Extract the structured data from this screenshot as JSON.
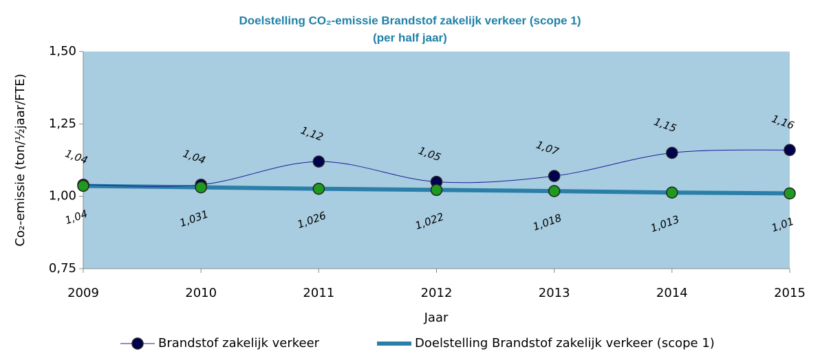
{
  "chart_data": {
    "type": "line",
    "title": "Doelstelling CO₂-emissie Brandstof zakelijk verkeer (scope 1)",
    "subtitle": "(per half jaar)",
    "x_label": "Jaar",
    "y_label": "Co₂-emissie (ton/½jaar/FTE)",
    "x": [
      2009,
      2010,
      2011,
      2012,
      2013,
      2014,
      2015
    ],
    "xlim": [
      2009,
      2015
    ],
    "xticks": [
      2009,
      2010,
      2011,
      2012,
      2013,
      2014,
      2015
    ],
    "ylim": [
      0.75,
      1.5
    ],
    "yticks": [
      {
        "value": 0.75,
        "label": "0,75"
      },
      {
        "value": 1.0,
        "label": "1,00"
      },
      {
        "value": 1.25,
        "label": "1,25"
      },
      {
        "value": 1.5,
        "label": "1,50"
      }
    ],
    "grid": false,
    "legend": "bottom",
    "plot_background": "#a8cce0",
    "series": [
      {
        "name": "Brandstof zakelijk verkeer",
        "color": "#1c1c99",
        "marker_color": "#000050",
        "line_width": 1,
        "smooth": true,
        "label_side": "above",
        "values": [
          1.04,
          1.04,
          1.12,
          1.05,
          1.07,
          1.15,
          1.16
        ],
        "value_labels": [
          "1,04",
          "1,04",
          "1,12",
          "1,05",
          "1,07",
          "1,15",
          "1,16"
        ]
      },
      {
        "name": "Doelstelling Brandstof zakelijk verkeer (scope 1)",
        "color": "#2a7fa8",
        "marker_color": "#1e9a1e",
        "line_width": 6,
        "smooth": false,
        "label_side": "below",
        "values": [
          1.036,
          1.031,
          1.026,
          1.022,
          1.018,
          1.013,
          1.01
        ],
        "value_labels": [
          "1,04",
          "1,031",
          "1,026",
          "1,022",
          "1,018",
          "1,013",
          "1,01"
        ]
      }
    ]
  }
}
